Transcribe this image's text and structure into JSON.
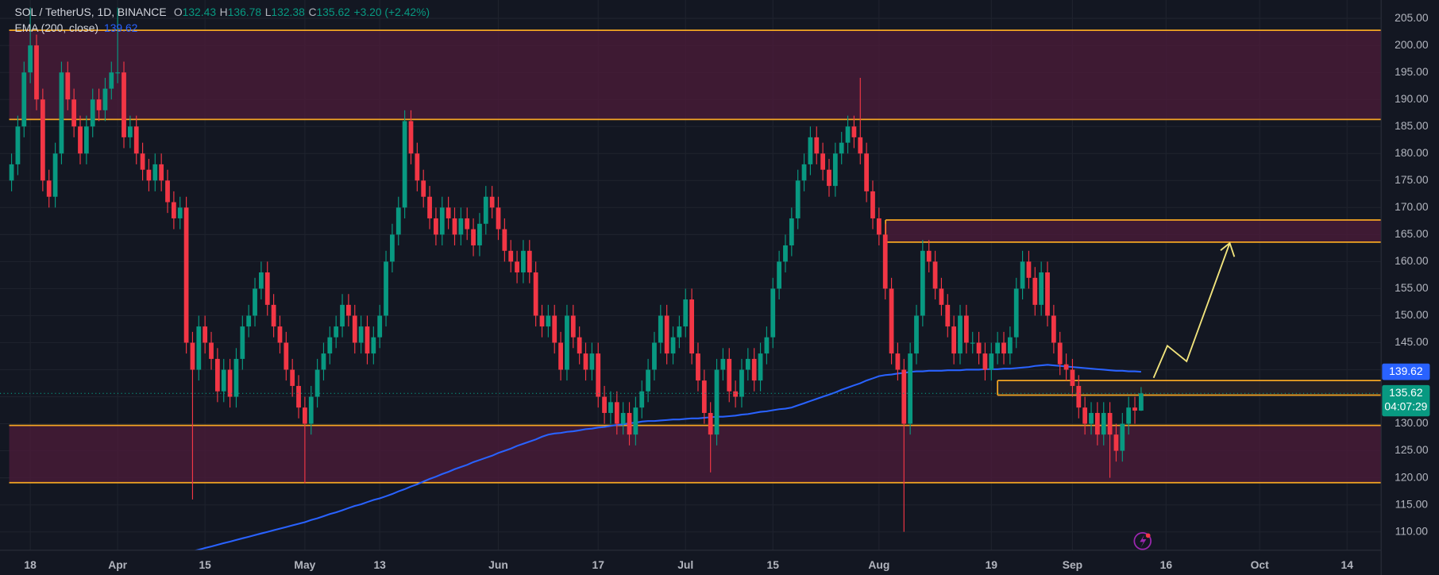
{
  "header": {
    "symbol": "SOL / TetherUS, 1D, BINANCE",
    "ohlc": [
      {
        "key": "O",
        "value": "132.43"
      },
      {
        "key": "H",
        "value": "136.78"
      },
      {
        "key": "L",
        "value": "132.38"
      },
      {
        "key": "C",
        "value": "135.62"
      }
    ],
    "change": "+3.20 (+2.42%)",
    "indicator": {
      "label": "EMA (200, close)",
      "value": "139.62"
    }
  },
  "price_tags": {
    "ema": "139.62",
    "last": "135.62",
    "countdown": "04:07:29"
  },
  "chart_data": {
    "type": "candlestick",
    "categories": [
      null,
      null,
      null,
      "18",
      null,
      null,
      null,
      null,
      null,
      null,
      null,
      null,
      null,
      null,
      null,
      null,
      null,
      "Apr",
      null,
      null,
      null,
      null,
      null,
      null,
      null,
      null,
      null,
      null,
      null,
      null,
      null,
      "15",
      null,
      null,
      null,
      null,
      null,
      null,
      null,
      null,
      null,
      null,
      null,
      null,
      null,
      null,
      null,
      "May",
      null,
      null,
      null,
      null,
      null,
      null,
      null,
      null,
      null,
      null,
      null,
      "13",
      null,
      null,
      null,
      null,
      null,
      null,
      null,
      null,
      null,
      null,
      null,
      null,
      null,
      null,
      null,
      null,
      null,
      null,
      "Jun",
      null,
      null,
      null,
      null,
      null,
      null,
      null,
      null,
      null,
      null,
      null,
      null,
      null,
      null,
      null,
      "17",
      null,
      null,
      null,
      null,
      null,
      null,
      null,
      null,
      null,
      null,
      null,
      null,
      null,
      "Jul",
      null,
      null,
      null,
      null,
      null,
      null,
      null,
      null,
      null,
      null,
      null,
      null,
      null,
      "15",
      null,
      null,
      null,
      null,
      null,
      null,
      null,
      null,
      null,
      null,
      null,
      null,
      null,
      null,
      null,
      null,
      "Aug",
      null,
      null,
      null,
      null,
      null,
      null,
      null,
      null,
      null,
      null,
      null,
      null,
      null,
      null,
      null,
      null,
      null,
      "19",
      null,
      null,
      null,
      null,
      null,
      null,
      null,
      null,
      null,
      null,
      null,
      null,
      "Sep",
      null,
      null,
      null,
      null,
      null,
      null,
      null,
      null,
      null,
      null,
      null,
      null,
      null,
      null,
      "16",
      null,
      null,
      null,
      null,
      null,
      null,
      null,
      null,
      null,
      null,
      null,
      null,
      null,
      null,
      "Oct",
      null,
      null,
      null,
      null,
      null,
      null,
      null,
      null,
      null,
      null,
      null,
      null,
      null,
      "14"
    ],
    "open": [
      175,
      178,
      185,
      195,
      200,
      190,
      175,
      172,
      180,
      195,
      190,
      185,
      180,
      185,
      190,
      188,
      192,
      195,
      195,
      183,
      185,
      180,
      177,
      175,
      178,
      175,
      171,
      168,
      170,
      145,
      140,
      148,
      145,
      142,
      136,
      140,
      135,
      142,
      148,
      150,
      155,
      158,
      152,
      148,
      145,
      140,
      137,
      133,
      130,
      135,
      140,
      143,
      146,
      148,
      152,
      150,
      145,
      148,
      143,
      146,
      150,
      160,
      165,
      170,
      186,
      180,
      175,
      172,
      168,
      165,
      170,
      168,
      165,
      168,
      166,
      163,
      167,
      172,
      170,
      166,
      162,
      160,
      158,
      162,
      158,
      150,
      148,
      150,
      145,
      140,
      150,
      146,
      143,
      140,
      143,
      135,
      132,
      134,
      130,
      132,
      128,
      133,
      136,
      140,
      145,
      150,
      143,
      146,
      148,
      153,
      143,
      138,
      132,
      128,
      140,
      142,
      136,
      135,
      140,
      142,
      138,
      143,
      146,
      155,
      160,
      163,
      168,
      175,
      178,
      183,
      180,
      177,
      174,
      180,
      182,
      185,
      183,
      180,
      173,
      168,
      165,
      155,
      143,
      140,
      130,
      143,
      150,
      162,
      160,
      155,
      152,
      148,
      143,
      150,
      145,
      145,
      143,
      140,
      143,
      145,
      143,
      146,
      155,
      160,
      157,
      152,
      158,
      150,
      145,
      141,
      140,
      137,
      133,
      130,
      132,
      128,
      132,
      128,
      125,
      130,
      133,
      132.43,
      null,
      null,
      null,
      null,
      null,
      null,
      null,
      null,
      null,
      null,
      null,
      null,
      null,
      null,
      null,
      null,
      null,
      null,
      null,
      null,
      null,
      null,
      null,
      null,
      null,
      null,
      null,
      null,
      null,
      null,
      null,
      null,
      null
    ],
    "high": [
      180,
      187,
      197,
      207,
      202,
      192,
      177,
      182,
      197,
      197,
      192,
      187,
      187,
      192,
      192,
      194,
      197,
      207,
      197,
      187,
      187,
      182,
      179,
      180,
      180,
      177,
      173,
      172,
      172,
      147,
      150,
      150,
      147,
      144,
      142,
      142,
      144,
      150,
      152,
      157,
      160,
      160,
      154,
      150,
      147,
      142,
      139,
      135,
      137,
      142,
      145,
      148,
      150,
      154,
      154,
      152,
      150,
      150,
      148,
      152,
      162,
      167,
      172,
      188,
      188,
      182,
      177,
      174,
      170,
      172,
      172,
      170,
      170,
      170,
      168,
      169,
      174,
      174,
      172,
      168,
      164,
      162,
      164,
      164,
      160,
      152,
      152,
      152,
      147,
      152,
      152,
      148,
      145,
      145,
      145,
      137,
      136,
      136,
      134,
      134,
      135,
      138,
      142,
      147,
      152,
      152,
      148,
      150,
      155,
      155,
      145,
      140,
      134,
      142,
      144,
      144,
      138,
      142,
      144,
      144,
      145,
      148,
      157,
      162,
      165,
      170,
      177,
      180,
      185,
      185,
      182,
      179,
      182,
      184,
      187,
      187,
      194,
      182,
      175,
      170,
      167,
      157,
      145,
      142,
      145,
      152,
      164,
      164,
      162,
      157,
      154,
      150,
      152,
      152,
      147,
      147,
      145,
      145,
      147,
      147,
      148,
      157,
      162,
      162,
      159,
      160,
      160,
      152,
      147,
      143,
      142,
      139,
      135,
      134,
      134,
      134,
      134,
      130,
      132,
      135,
      135,
      136.78,
      null,
      null,
      null,
      null,
      null,
      null,
      null,
      null,
      null,
      null,
      null,
      null,
      null,
      null,
      null,
      null,
      null,
      null,
      null,
      null,
      null,
      null,
      null,
      null,
      null,
      null,
      null,
      null,
      null,
      null,
      null,
      null,
      null
    ],
    "low": [
      173,
      176,
      183,
      193,
      188,
      173,
      170,
      170,
      178,
      188,
      183,
      178,
      178,
      183,
      186,
      186,
      190,
      193,
      181,
      181,
      178,
      175,
      173,
      173,
      173,
      169,
      166,
      166,
      143,
      116,
      138,
      143,
      140,
      134,
      134,
      133,
      133,
      140,
      146,
      148,
      153,
      150,
      146,
      143,
      138,
      135,
      131,
      119,
      128,
      133,
      138,
      141,
      144,
      146,
      148,
      143,
      143,
      141,
      141,
      144,
      148,
      158,
      163,
      168,
      178,
      173,
      170,
      166,
      163,
      163,
      166,
      163,
      163,
      164,
      161,
      161,
      165,
      168,
      164,
      160,
      158,
      156,
      156,
      156,
      148,
      146,
      146,
      143,
      138,
      138,
      144,
      141,
      138,
      138,
      133,
      130,
      130,
      128,
      128,
      126,
      126,
      131,
      134,
      138,
      143,
      141,
      141,
      144,
      146,
      141,
      136,
      130,
      121,
      126,
      138,
      134,
      133,
      133,
      138,
      136,
      136,
      141,
      144,
      153,
      158,
      161,
      166,
      173,
      176,
      178,
      175,
      172,
      172,
      178,
      180,
      181,
      178,
      171,
      166,
      163,
      153,
      141,
      138,
      110,
      128,
      141,
      148,
      158,
      153,
      150,
      146,
      141,
      141,
      143,
      143,
      141,
      138,
      138,
      141,
      141,
      141,
      144,
      153,
      155,
      150,
      150,
      148,
      143,
      139,
      138,
      135,
      131,
      128,
      128,
      126,
      126,
      120,
      123,
      123,
      128,
      130,
      132.38,
      null,
      null,
      null,
      null,
      null,
      null,
      null,
      null,
      null,
      null,
      null,
      null,
      null,
      null,
      null,
      null,
      null,
      null,
      null,
      null,
      null,
      null,
      null,
      null,
      null,
      null,
      null,
      null,
      null,
      null,
      null,
      null,
      null
    ],
    "close": [
      178,
      185,
      195,
      200,
      190,
      175,
      172,
      180,
      195,
      190,
      185,
      180,
      185,
      190,
      188,
      192,
      195,
      195,
      183,
      185,
      180,
      177,
      175,
      178,
      175,
      171,
      168,
      170,
      145,
      140,
      148,
      145,
      142,
      136,
      140,
      135,
      142,
      148,
      150,
      155,
      158,
      152,
      148,
      145,
      140,
      137,
      133,
      130,
      135,
      140,
      143,
      146,
      148,
      152,
      150,
      145,
      148,
      143,
      146,
      150,
      160,
      165,
      170,
      186,
      180,
      175,
      172,
      168,
      165,
      170,
      168,
      165,
      168,
      166,
      163,
      167,
      172,
      170,
      166,
      162,
      160,
      158,
      162,
      158,
      150,
      148,
      150,
      145,
      140,
      150,
      146,
      143,
      140,
      143,
      135,
      132,
      134,
      130,
      132,
      128,
      133,
      136,
      140,
      145,
      150,
      143,
      146,
      148,
      153,
      143,
      138,
      132,
      128,
      140,
      142,
      136,
      135,
      140,
      142,
      138,
      143,
      146,
      155,
      160,
      163,
      168,
      175,
      178,
      183,
      180,
      177,
      174,
      180,
      182,
      185,
      183,
      180,
      173,
      168,
      165,
      155,
      143,
      140,
      130,
      143,
      150,
      162,
      160,
      155,
      152,
      148,
      143,
      150,
      145,
      145,
      143,
      140,
      143,
      145,
      143,
      146,
      155,
      160,
      157,
      152,
      158,
      150,
      145,
      141,
      140,
      137,
      133,
      130,
      132,
      128,
      132,
      128,
      125,
      130,
      133,
      132.43,
      135.62,
      null,
      null,
      null,
      null,
      null,
      null,
      null,
      null,
      null,
      null,
      null,
      null,
      null,
      null,
      null,
      null,
      null,
      null,
      null,
      null,
      null,
      null,
      null,
      null,
      null,
      null,
      null,
      null,
      null,
      null,
      null,
      null,
      null
    ],
    "up_color": "#089981",
    "down_color": "#f23645",
    "ema": {
      "color": "#2962ff",
      "values": [
        null,
        null,
        null,
        null,
        null,
        null,
        null,
        null,
        null,
        null,
        null,
        null,
        null,
        null,
        null,
        null,
        null,
        null,
        null,
        null,
        null,
        null,
        null,
        null,
        null,
        null,
        null,
        null,
        106.1,
        106.4,
        106.7,
        107.0,
        107.3,
        107.6,
        107.9,
        108.2,
        108.5,
        108.8,
        109.1,
        109.4,
        109.7,
        110.0,
        110.3,
        110.6,
        110.9,
        111.2,
        111.5,
        111.8,
        112.2,
        112.5,
        112.9,
        113.3,
        113.6,
        114.0,
        114.4,
        114.8,
        115.1,
        115.5,
        115.9,
        116.2,
        116.6,
        117.0,
        117.5,
        117.9,
        118.4,
        118.8,
        119.3,
        119.8,
        120.2,
        120.7,
        121.1,
        121.6,
        122.0,
        122.4,
        122.9,
        123.3,
        123.7,
        124.1,
        124.6,
        125.0,
        125.4,
        125.9,
        126.3,
        126.7,
        127.1,
        127.6,
        128.0,
        128.2,
        128.3,
        128.5,
        128.6,
        128.8,
        129.0,
        129.1,
        129.3,
        129.4,
        129.6,
        129.8,
        129.9,
        130.1,
        130.2,
        130.4,
        130.5,
        130.5,
        130.6,
        130.7,
        130.8,
        130.8,
        130.9,
        131.0,
        131.0,
        131.1,
        131.2,
        131.3,
        131.3,
        131.4,
        131.5,
        131.7,
        131.8,
        132.0,
        132.2,
        132.3,
        132.5,
        132.7,
        132.8,
        133.0,
        133.4,
        133.8,
        134.2,
        134.6,
        135.0,
        135.4,
        135.8,
        136.3,
        136.7,
        137.1,
        137.5,
        138.0,
        138.4,
        138.8,
        139.0,
        139.1,
        139.3,
        139.4,
        139.6,
        139.7,
        139.7,
        139.8,
        139.8,
        139.8,
        139.9,
        139.9,
        139.9,
        140.0,
        140.0,
        140.0,
        140.1,
        140.1,
        140.1,
        140.2,
        140.2,
        140.3,
        140.4,
        140.5,
        140.7,
        140.8,
        140.9,
        140.8,
        140.7,
        140.6,
        140.5,
        140.4,
        140.3,
        140.2,
        140.1,
        140.0,
        139.9,
        139.8,
        139.8,
        139.7,
        139.7,
        139.62,
        null,
        null,
        null,
        null,
        null,
        null,
        null,
        null,
        null,
        null,
        null,
        null,
        null,
        null,
        null,
        null,
        null,
        null,
        null,
        null,
        null,
        null,
        null,
        null,
        null,
        null,
        null,
        null,
        null,
        null,
        null,
        null,
        null
      ]
    },
    "zones": [
      {
        "low": 186.3,
        "high": 202.8,
        "fill": "#4a1c38"
      },
      {
        "low": 119.1,
        "high": 129.7,
        "fill": "#4a1c38"
      },
      {
        "low": 163.6,
        "high": 167.7,
        "fill": "#4a1c38"
      },
      {
        "low": 135.3,
        "high": 138.0,
        "fill": "#2a2326"
      }
    ],
    "zone_line_color": "#f5a623",
    "ylim": [
      106.6,
      208.4
    ],
    "yticks": [
      {
        "value": 110,
        "label": "110.00"
      },
      {
        "value": 115,
        "label": "115.00"
      },
      {
        "value": 120,
        "label": "120.00"
      },
      {
        "value": 125,
        "label": "125.00"
      },
      {
        "value": 130,
        "label": "130.00"
      },
      {
        "value": 135,
        "label": "135.00"
      },
      {
        "value": 140,
        "label": "140.00"
      },
      {
        "value": 145,
        "label": "145.00"
      },
      {
        "value": 150,
        "label": "150.00"
      },
      {
        "value": 155,
        "label": "155.00"
      },
      {
        "value": 160,
        "label": "160.00"
      },
      {
        "value": 165,
        "label": "165.00"
      },
      {
        "value": 170,
        "label": "170.00"
      },
      {
        "value": 175,
        "label": "175.00"
      },
      {
        "value": 180,
        "label": "180.00"
      },
      {
        "value": 185,
        "label": "185.00"
      },
      {
        "value": 190,
        "label": "190.00"
      },
      {
        "value": 195,
        "label": "195.00"
      },
      {
        "value": 200,
        "label": "200.00"
      },
      {
        "value": 205,
        "label": "205.00"
      }
    ],
    "grid": true
  }
}
